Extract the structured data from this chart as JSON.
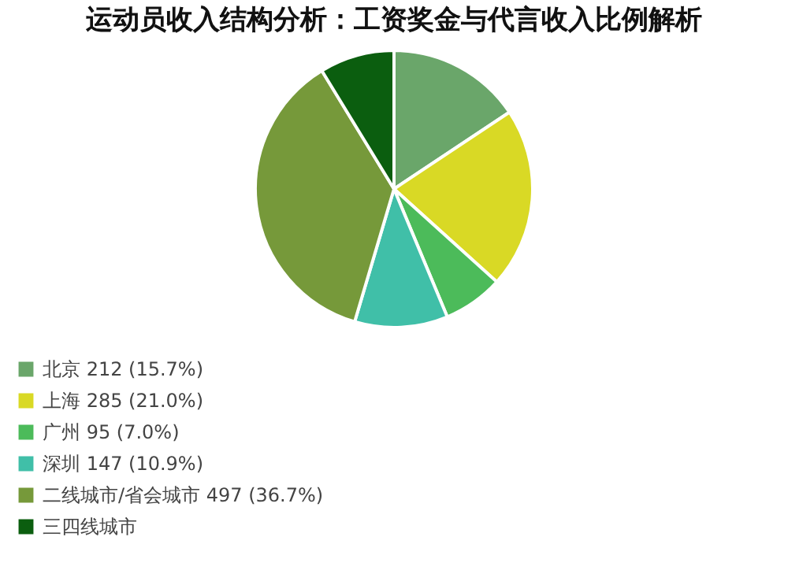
{
  "chart_data": {
    "type": "pie",
    "title": "运动员收入结构分析：工资奖金与代言收入比例解析",
    "categories": [
      "北京 212 (15.7%)",
      "上海 285 (21.0%)",
      "广州 95 (7.0%)",
      "深圳 147 (10.9%)",
      "二线城市/省会城市 497 (36.7%)",
      "三四线城市"
    ],
    "values": [
      212,
      285,
      95,
      147,
      497,
      118
    ],
    "colors": [
      "#6aa66a",
      "#d9d925",
      "#4cbb5a",
      "#40bfa8",
      "#76993a",
      "#0b5e0f"
    ],
    "legend": "bottom"
  }
}
